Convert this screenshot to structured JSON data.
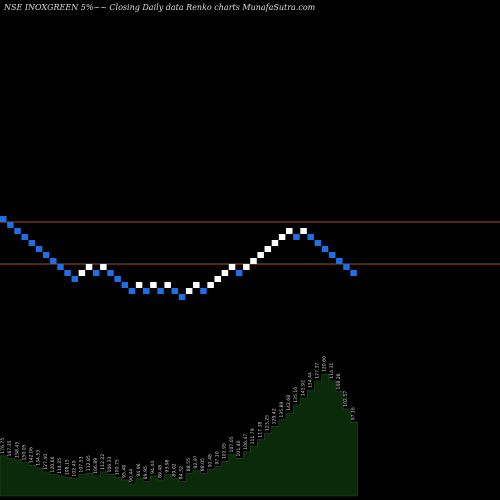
{
  "header": {
    "title": "NSE INOXGREEN  5%~~ Closing Daily data  Renko  charts MunafaSutra.com"
  },
  "colors": {
    "background": "#000000",
    "up_brick": "#ffffff",
    "down_brick": "#1e6ee6",
    "reference_line": "#a0522d",
    "volume_fill": "#0a2a0a",
    "volume_label": "#cccccc"
  },
  "chart_data": {
    "type": "renko",
    "brick_size": "5%",
    "bricks": [
      "down",
      "down",
      "down",
      "down",
      "down",
      "down",
      "down",
      "down",
      "down",
      "down",
      "down",
      "up",
      "up",
      "down",
      "up",
      "down",
      "down",
      "down",
      "down",
      "up",
      "down",
      "up",
      "down",
      "up",
      "down",
      "down",
      "up",
      "up",
      "down",
      "up",
      "up",
      "up",
      "up",
      "down",
      "up",
      "up",
      "up",
      "up",
      "up",
      "up",
      "up",
      "down",
      "up",
      "down",
      "down",
      "down",
      "down",
      "down",
      "down",
      "down"
    ],
    "reference_levels_count": 2,
    "volume_labels": [
      "176.75",
      "167.35",
      "158.45",
      "150.05",
      "142.06",
      "134.53",
      "127.40",
      "120.66",
      "114.25",
      "108.15",
      "102.40",
      "107.53",
      "112.85",
      "106.89",
      "112.22",
      "106.33",
      "100.75",
      "95.48",
      "90.44",
      "94.96",
      "89.95",
      "94.44",
      "89.48",
      "93.98",
      "89.02",
      "84.32",
      "88.55",
      "92.97",
      "88.05",
      "92.48",
      "97.10",
      "101.95",
      "107.05",
      "101.40",
      "106.47",
      "111.79",
      "117.38",
      "123.25",
      "129.42",
      "135.89",
      "142.68",
      "135.16",
      "141.92",
      "134.44",
      "127.37",
      "120.66",
      "114.31",
      "108.28",
      "102.57",
      "97.16"
    ],
    "volume_fill_levels": [
      0.3,
      0.28,
      0.27,
      0.25,
      0.23,
      0.21,
      0.18,
      0.16,
      0.15,
      0.14,
      0.13,
      0.16,
      0.17,
      0.15,
      0.18,
      0.16,
      0.14,
      0.12,
      0.09,
      0.13,
      0.11,
      0.15,
      0.12,
      0.16,
      0.13,
      0.11,
      0.17,
      0.19,
      0.17,
      0.2,
      0.22,
      0.26,
      0.31,
      0.28,
      0.33,
      0.37,
      0.42,
      0.47,
      0.52,
      0.57,
      0.62,
      0.68,
      0.73,
      0.79,
      0.86,
      0.91,
      0.86,
      0.78,
      0.65,
      0.55
    ]
  }
}
